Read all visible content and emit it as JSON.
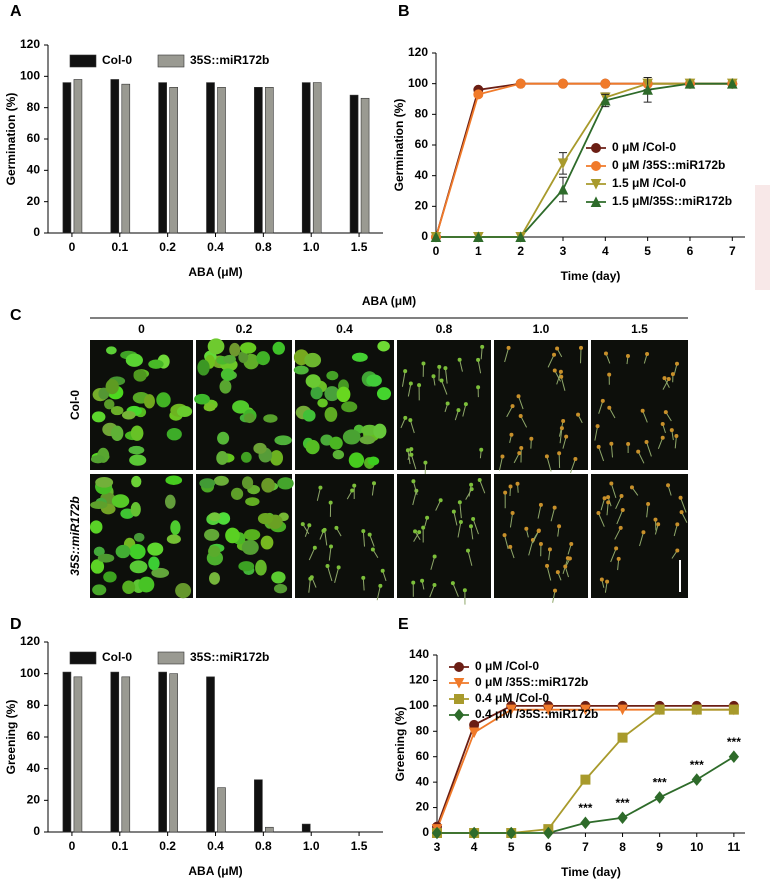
{
  "chart_data": [
    {
      "type": "bar",
      "panel": "A",
      "ylabel": "Germination (%)",
      "xlabel": "ABA (μM)",
      "categories": [
        "0",
        "0.1",
        "0.2",
        "0.4",
        "0.8",
        "1.0",
        "1.5"
      ],
      "series": [
        {
          "name": "Col-0",
          "color": "#111111",
          "values": [
            96,
            98,
            96,
            96,
            93,
            96,
            88
          ]
        },
        {
          "name": "35S::miR172b",
          "color": "#9a9a92",
          "values": [
            98,
            95,
            93,
            93,
            93,
            96,
            86
          ]
        }
      ],
      "ylim": [
        0,
        120
      ],
      "yticks": [
        0,
        20,
        40,
        60,
        80,
        100,
        120
      ],
      "legend": "top"
    },
    {
      "type": "line",
      "panel": "B",
      "ylabel": "Germination (%)",
      "xlabel": "Time (day)",
      "x": [
        0,
        1,
        2,
        3,
        4,
        5,
        6,
        7
      ],
      "series": [
        {
          "name": "0 μM /Col-0",
          "color": "#6b1e14",
          "marker": "circle",
          "values": [
            0,
            96,
            100,
            100,
            100,
            100,
            100,
            100
          ]
        },
        {
          "name": "0 μM /35S::miR172b",
          "color": "#f07a2a",
          "marker": "circle",
          "values": [
            0,
            93,
            100,
            100,
            100,
            100,
            100,
            100
          ]
        },
        {
          "name": "1.5 μM /Col-0",
          "color": "#a89a2c",
          "marker": "triangle-down",
          "values": [
            0,
            0,
            0,
            48,
            91,
            100,
            100,
            100
          ],
          "errors": [
            null,
            null,
            null,
            7,
            3,
            4,
            null,
            null
          ]
        },
        {
          "name": "1.5 μM/35S::miR172b",
          "color": "#2e6b2a",
          "marker": "triangle-up",
          "values": [
            0,
            0,
            0,
            31,
            89,
            96,
            100,
            100
          ],
          "errors": [
            null,
            null,
            null,
            8,
            4,
            8,
            null,
            null
          ]
        }
      ],
      "xlim": [
        0,
        7.3
      ],
      "xticks": [
        0,
        1,
        2,
        3,
        4,
        5,
        6,
        7
      ],
      "ylim": [
        0,
        120
      ],
      "yticks": [
        0,
        20,
        40,
        60,
        80,
        100,
        120
      ],
      "legend": "center right"
    },
    {
      "type": "bar",
      "panel": "D",
      "ylabel": "Greening (%)",
      "xlabel": "ABA (μM)",
      "categories": [
        "0",
        "0.1",
        "0.2",
        "0.4",
        "0.8",
        "1.0",
        "1.5"
      ],
      "series": [
        {
          "name": "Col-0",
          "color": "#111111",
          "values": [
            101,
            101,
            101,
            98,
            33,
            5,
            0
          ]
        },
        {
          "name": "35S::miR172b",
          "color": "#9a9a92",
          "values": [
            98,
            98,
            100,
            28,
            3,
            0,
            0
          ]
        }
      ],
      "ylim": [
        0,
        120
      ],
      "yticks": [
        0,
        20,
        40,
        60,
        80,
        100,
        120
      ],
      "legend": "top"
    },
    {
      "type": "line",
      "panel": "E",
      "ylabel": "Greening (%)",
      "xlabel": "Time (day)",
      "x": [
        3,
        4,
        5,
        6,
        7,
        8,
        9,
        10,
        11
      ],
      "series": [
        {
          "name": "0 μM /Col-0",
          "color": "#6b1e14",
          "marker": "circle",
          "values": [
            5,
            85,
            100,
            100,
            100,
            100,
            100,
            100,
            100
          ]
        },
        {
          "name": "0 μM /35S::miR172b",
          "color": "#f07a2a",
          "marker": "triangle-down",
          "values": [
            3,
            79,
            97,
            97,
            97,
            97,
            97,
            97,
            97
          ]
        },
        {
          "name": "0.4 μM /Col-0",
          "color": "#a89a2c",
          "marker": "square",
          "values": [
            0,
            0,
            0,
            3,
            42,
            75,
            97,
            97,
            97
          ]
        },
        {
          "name": "0.4 μM /35S::miR172b",
          "color": "#2e6b2a",
          "marker": "diamond",
          "values": [
            0,
            0,
            0,
            0,
            8,
            12,
            28,
            42,
            60
          ]
        }
      ],
      "annotations": [
        {
          "x": 7,
          "text": "***"
        },
        {
          "x": 8,
          "text": "***"
        },
        {
          "x": 9,
          "text": "***"
        },
        {
          "x": 10,
          "text": "***"
        },
        {
          "x": 11,
          "text": "***"
        }
      ],
      "xlim": [
        3,
        11.3
      ],
      "xticks": [
        3,
        4,
        5,
        6,
        7,
        8,
        9,
        10,
        11
      ],
      "ylim": [
        0,
        140
      ],
      "yticks": [
        0,
        20,
        40,
        60,
        80,
        100,
        120,
        140
      ],
      "legend": "upper left"
    }
  ],
  "photo_panel": {
    "panel": "C",
    "title": "ABA (μM)",
    "columns": [
      "0",
      "0.2",
      "0.4",
      "0.8",
      "1.0",
      "1.5"
    ],
    "rows": [
      "Col-0",
      "35S::miR172b"
    ]
  }
}
